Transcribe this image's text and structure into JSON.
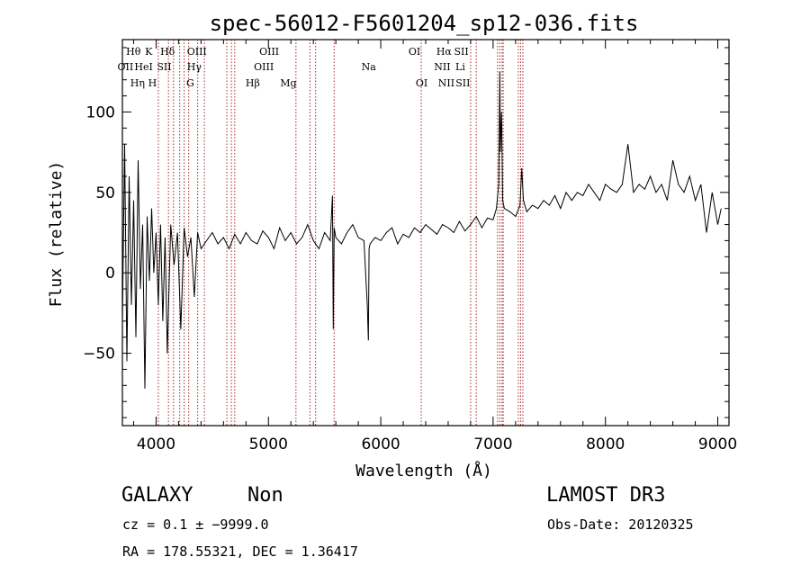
{
  "chart_data": {
    "type": "line",
    "title": "spec-56012-F5601204_sp12-036.fits",
    "xlabel": "Wavelength (Å)",
    "ylabel": "Flux (relative)",
    "xlim": [
      3700,
      9100
    ],
    "ylim": [
      -95,
      145
    ],
    "x_ticks": [
      {
        "value": 4000,
        "label": "4000"
      },
      {
        "value": 5000,
        "label": "5000"
      },
      {
        "value": 6000,
        "label": "6000"
      },
      {
        "value": 7000,
        "label": "7000"
      },
      {
        "value": 8000,
        "label": "8000"
      },
      {
        "value": 9000,
        "label": "9000"
      }
    ],
    "y_ticks": [
      {
        "value": -50,
        "label": "−50"
      },
      {
        "value": 0,
        "label": "0"
      },
      {
        "value": 50,
        "label": "50"
      },
      {
        "value": 100,
        "label": "100"
      }
    ],
    "series": [
      {
        "name": "flux",
        "x": [
          3700,
          3720,
          3740,
          3760,
          3780,
          3800,
          3820,
          3840,
          3860,
          3880,
          3900,
          3920,
          3940,
          3960,
          3980,
          4000,
          4020,
          4040,
          4060,
          4080,
          4100,
          4130,
          4160,
          4190,
          4220,
          4250,
          4280,
          4310,
          4340,
          4370,
          4400,
          4450,
          4500,
          4550,
          4600,
          4650,
          4700,
          4750,
          4800,
          4850,
          4900,
          4950,
          5000,
          5050,
          5100,
          5150,
          5200,
          5250,
          5300,
          5350,
          5400,
          5450,
          5500,
          5550,
          5570,
          5577,
          5585,
          5600,
          5650,
          5700,
          5750,
          5800,
          5850,
          5880,
          5890,
          5896,
          5905,
          5950,
          6000,
          6050,
          6100,
          6150,
          6200,
          6250,
          6300,
          6350,
          6400,
          6450,
          6500,
          6550,
          6600,
          6650,
          6700,
          6750,
          6800,
          6850,
          6900,
          6950,
          7000,
          7030,
          7050,
          7060,
          7065,
          7075,
          7085,
          7100,
          7150,
          7200,
          7240,
          7255,
          7270,
          7300,
          7350,
          7400,
          7450,
          7500,
          7550,
          7600,
          7650,
          7700,
          7750,
          7800,
          7850,
          7900,
          7950,
          8000,
          8050,
          8100,
          8150,
          8200,
          8250,
          8300,
          8350,
          8400,
          8450,
          8500,
          8550,
          8600,
          8650,
          8700,
          8750,
          8800,
          8850,
          8900,
          8950,
          9000,
          9030
        ],
        "y": [
          -30,
          80,
          -55,
          60,
          -20,
          45,
          -40,
          70,
          -10,
          30,
          -72,
          35,
          -5,
          40,
          0,
          25,
          -20,
          30,
          -30,
          22,
          -50,
          30,
          5,
          25,
          -35,
          28,
          10,
          22,
          -15,
          25,
          15,
          20,
          25,
          18,
          22,
          15,
          24,
          18,
          25,
          20,
          18,
          26,
          22,
          15,
          28,
          20,
          25,
          18,
          22,
          30,
          20,
          15,
          25,
          20,
          48,
          -35,
          28,
          22,
          18,
          25,
          30,
          22,
          20,
          -20,
          -42,
          15,
          18,
          22,
          20,
          25,
          28,
          18,
          24,
          22,
          28,
          25,
          30,
          27,
          24,
          30,
          28,
          25,
          32,
          26,
          30,
          35,
          28,
          34,
          33,
          40,
          55,
          125,
          75,
          100,
          45,
          40,
          38,
          35,
          42,
          65,
          45,
          38,
          42,
          40,
          45,
          42,
          48,
          40,
          50,
          45,
          50,
          48,
          55,
          50,
          45,
          55,
          52,
          50,
          55,
          80,
          50,
          55,
          52,
          60,
          50,
          55,
          45,
          70,
          55,
          50,
          60,
          45,
          55,
          25,
          50,
          30,
          40
        ]
      }
    ],
    "line_labels": [
      {
        "text": "OII",
        "wavelength": 3727,
        "row": 2
      },
      {
        "text": "Hθ",
        "wavelength": 3798,
        "row": 1
      },
      {
        "text": "Hη",
        "wavelength": 3835,
        "row": 3
      },
      {
        "text": "HeI",
        "wavelength": 3889,
        "row": 2
      },
      {
        "text": "K",
        "wavelength": 3934,
        "row": 1
      },
      {
        "text": "H",
        "wavelength": 3968,
        "row": 3
      },
      {
        "text": "Hδ",
        "wavelength": 4102,
        "row": 1
      },
      {
        "text": "SII",
        "wavelength": 4072,
        "row": 2
      },
      {
        "text": "OIII",
        "wavelength": 4363,
        "row": 1
      },
      {
        "text": "Hγ",
        "wavelength": 4340,
        "row": 2
      },
      {
        "text": "G",
        "wavelength": 4304,
        "row": 3
      },
      {
        "text": "Hβ",
        "wavelength": 4861,
        "row": 3
      },
      {
        "text": "OIII",
        "wavelength": 5007,
        "row": 1
      },
      {
        "text": "OIII",
        "wavelength": 4959,
        "row": 2
      },
      {
        "text": "Mg",
        "wavelength": 5177,
        "row": 3
      },
      {
        "text": "Na",
        "wavelength": 5893,
        "row": 2
      },
      {
        "text": "OI",
        "wavelength": 6300,
        "row": 1
      },
      {
        "text": "OI",
        "wavelength": 6364,
        "row": 3
      },
      {
        "text": "Hα",
        "wavelength": 6563,
        "row": 1
      },
      {
        "text": "NII",
        "wavelength": 6548,
        "row": 2
      },
      {
        "text": "NII",
        "wavelength": 6584,
        "row": 3
      },
      {
        "text": "SII",
        "wavelength": 6717,
        "row": 1
      },
      {
        "text": "Li",
        "wavelength": 6708,
        "row": 2
      },
      {
        "text": "SII",
        "wavelength": 6731,
        "row": 3
      }
    ],
    "marker_lines": [
      4020,
      4110,
      4155,
      4210,
      4250,
      4290,
      4370,
      4430,
      4630,
      4670,
      4700,
      5245,
      5370,
      5420,
      5585,
      6360,
      6800,
      6850,
      7040,
      7060,
      7080,
      7090,
      7225,
      7245,
      7265
    ]
  },
  "info": {
    "class_label": "GALAXY",
    "subclass_label": "Non",
    "survey_label": "LAMOST DR3",
    "redshift_text": "cz = 0.1 ± −9999.0",
    "obs_date_text": "Obs-Date: 20120325",
    "coords_text": "RA = 178.55321, DEC =    1.36417"
  },
  "colors": {
    "line": "#000000",
    "marker": "#a52a2a"
  }
}
